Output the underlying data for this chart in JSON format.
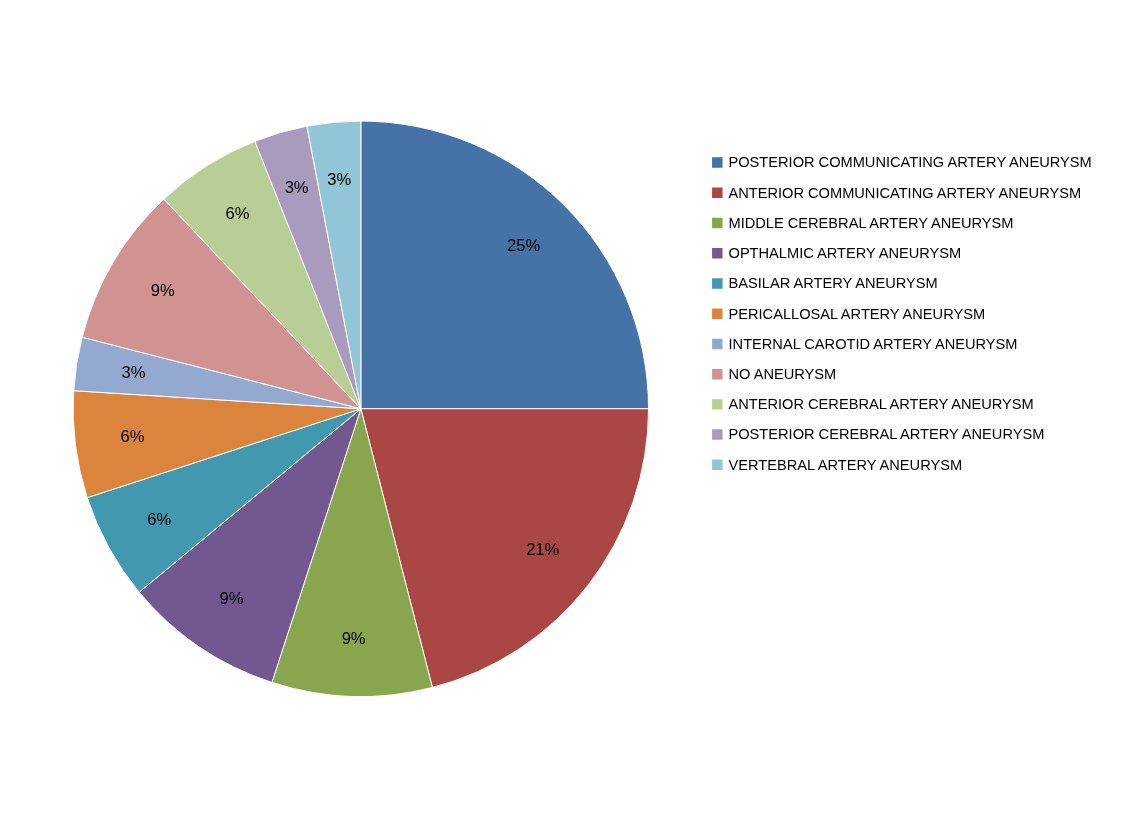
{
  "chart_data": {
    "type": "pie",
    "categories": [
      "POSTERIOR COMMUNICATING ARTERY ANEURYSM",
      "ANTERIOR COMMUNICATING ARTERY ANEURYSM",
      "MIDDLE CEREBRAL ARTERY ANEURYSM",
      "OPTHALMIC ARTERY ANEURYSM",
      "BASILAR ARTERY ANEURYSM",
      "PERICALLOSAL ARTERY ANEURYSM",
      "INTERNAL CAROTID ARTERY ANEURYSM",
      "NO ANEURYSM",
      "ANTERIOR CEREBRAL ARTERY ANEURYSM",
      "POSTERIOR CEREBRAL ARTERY ANEURYSM",
      "VERTEBRAL ARTERY ANEURYSM"
    ],
    "values": [
      25,
      21,
      9,
      9,
      6,
      6,
      3,
      9,
      6,
      3,
      3
    ],
    "value_labels": [
      "25%",
      "21%",
      "9%",
      "9%",
      "6%",
      "6%",
      "3%",
      "9%",
      "6%",
      "3%",
      "3%"
    ],
    "colors": [
      "#4572a7",
      "#aa4643",
      "#89a54e",
      "#71588f",
      "#4198af",
      "#db843d",
      "#93a9cf",
      "#d19392",
      "#b9cd96",
      "#a99bbd",
      "#92c5d6"
    ],
    "legend": "right"
  }
}
